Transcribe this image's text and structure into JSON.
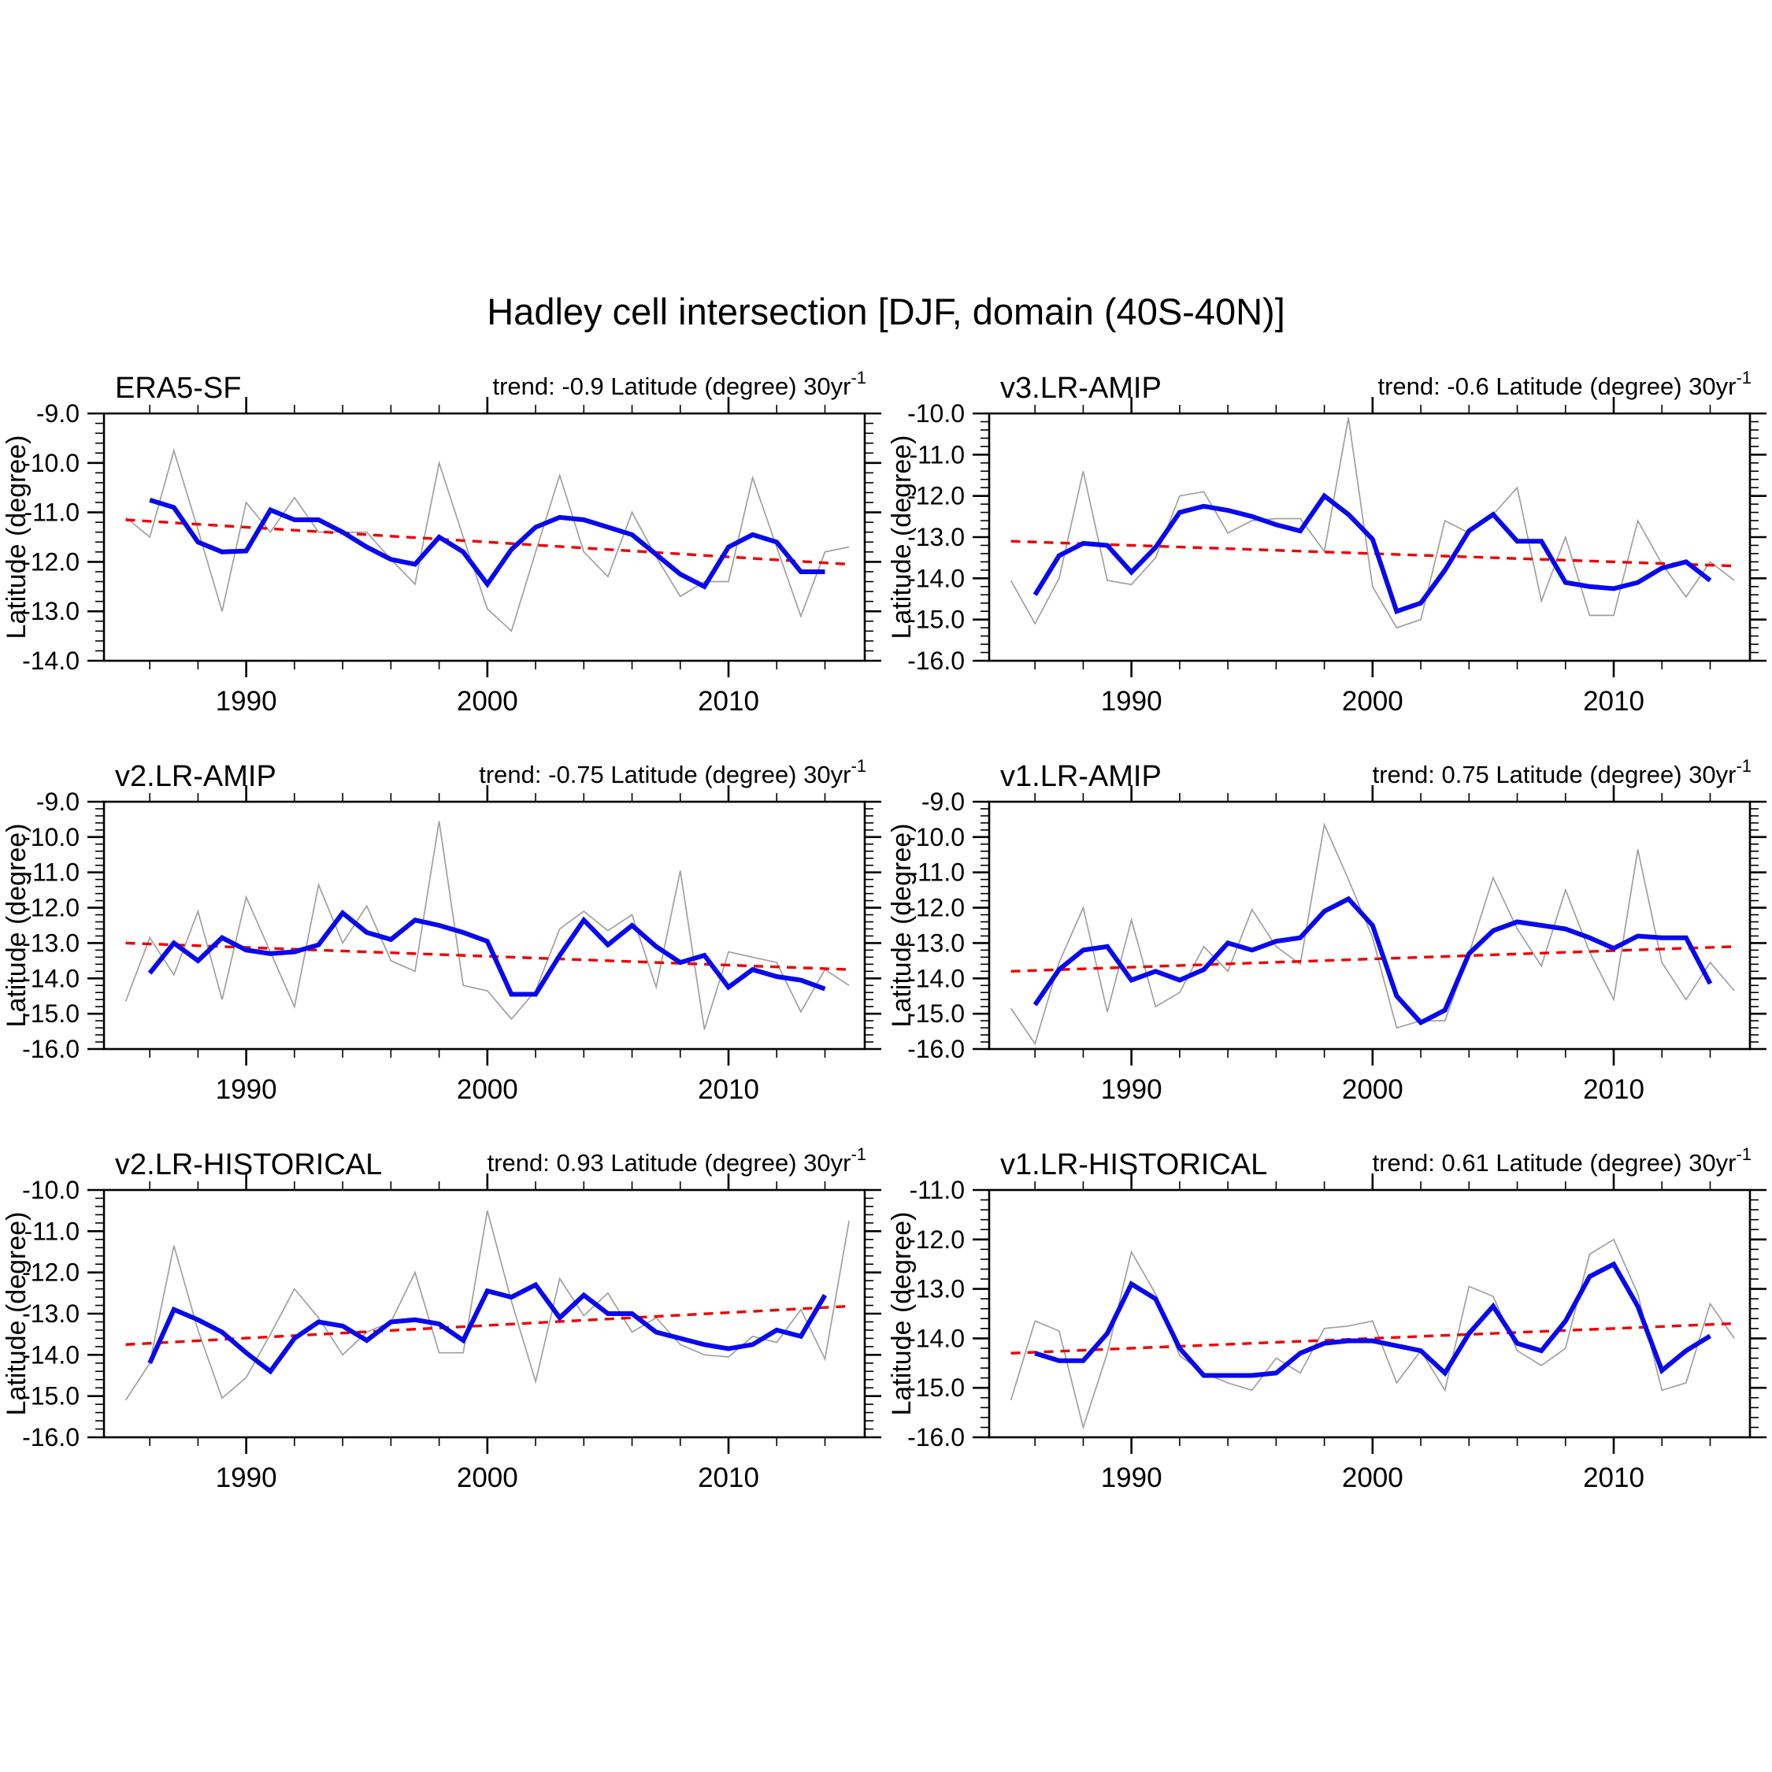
{
  "figure_title": "Hadley cell intersection [DJF, domain (40S-40N)]",
  "axes_text": {
    "y_axis_label": "Latitude (degree)",
    "x_major_ticks": [
      1990,
      2000,
      2010
    ],
    "x_minor_step_years": 2,
    "y_minor_step_degrees": 0.2,
    "x_range_years": [
      1985,
      2015
    ]
  },
  "years_raw": [
    1985,
    1986,
    1987,
    1988,
    1989,
    1990,
    1991,
    1992,
    1993,
    1994,
    1995,
    1996,
    1997,
    1998,
    1999,
    2000,
    2001,
    2002,
    2003,
    2004,
    2005,
    2006,
    2007,
    2008,
    2009,
    2010,
    2011,
    2012,
    2013,
    2014,
    2015
  ],
  "years_smooth": [
    1986,
    1987,
    1988,
    1989,
    1990,
    1991,
    1992,
    1993,
    1994,
    1995,
    1996,
    1997,
    1998,
    1999,
    2000,
    2001,
    2002,
    2003,
    2004,
    2005,
    2006,
    2007,
    2008,
    2009,
    2010,
    2011,
    2012,
    2013,
    2014
  ],
  "colors": {
    "annual": "#a0a0a0",
    "smoothed": "#0808f0",
    "trend": "#f00000",
    "axis": "#000000"
  },
  "chart_data": [
    {
      "type": "line",
      "id": "era5-sf",
      "title": "ERA5-SF",
      "trend_label": {
        "prefix": "trend: -0.9 Latitude (degree) 30yr",
        "superscript": "-1"
      },
      "trend_per_30yr": -0.9,
      "ylabel": "Latitude (degree)",
      "ylim": [
        -14.0,
        -9.0
      ],
      "ytick_step": 1.0,
      "grid": false,
      "series": [
        {
          "name": "annual",
          "x_start": 1985,
          "values": [
            -11.1,
            -11.5,
            -9.75,
            -11.35,
            -13.0,
            -10.8,
            -11.4,
            -10.7,
            -11.4,
            -11.4,
            -11.4,
            -11.95,
            -12.45,
            -10.0,
            -11.5,
            -12.95,
            -13.4,
            -11.8,
            -10.25,
            -11.8,
            -12.3,
            -11.0,
            -11.9,
            -12.7,
            -12.4,
            -12.4,
            -10.3,
            -11.7,
            -13.1,
            -11.8,
            -11.7
          ]
        },
        {
          "name": "smoothed",
          "x_start": 1986,
          "values": [
            -10.75,
            -10.9,
            -11.6,
            -11.8,
            -11.78,
            -10.95,
            -11.15,
            -11.15,
            -11.4,
            -11.7,
            -11.95,
            -12.05,
            -11.5,
            -11.8,
            -12.45,
            -11.75,
            -11.3,
            -11.1,
            -11.15,
            -11.3,
            -11.45,
            -11.85,
            -12.25,
            -12.5,
            -11.7,
            -11.45,
            -11.6,
            -12.2,
            -12.2
          ]
        },
        {
          "name": "trend",
          "x": [
            1985,
            2015
          ],
          "values": [
            -11.15,
            -12.05
          ]
        }
      ]
    },
    {
      "type": "line",
      "id": "v3-lr-amip",
      "title": "v3.LR-AMIP",
      "trend_label": {
        "prefix": "trend: -0.6 Latitude (degree) 30yr",
        "superscript": "-1"
      },
      "trend_per_30yr": -0.6,
      "ylabel": "Latitude (degree)",
      "ylim": [
        -16.0,
        -10.0
      ],
      "ytick_step": 1.0,
      "grid": false,
      "series": [
        {
          "name": "annual",
          "x_start": 1985,
          "values": [
            -14.05,
            -15.1,
            -14.0,
            -11.4,
            -14.05,
            -14.15,
            -13.5,
            -12.0,
            -11.9,
            -12.9,
            -12.6,
            -12.55,
            -12.55,
            -13.35,
            -10.1,
            -14.2,
            -15.2,
            -15.0,
            -12.6,
            -12.9,
            -12.45,
            -11.8,
            -14.55,
            -13.0,
            -14.9,
            -14.9,
            -12.6,
            -13.65,
            -14.45,
            -13.6,
            -14.05
          ]
        },
        {
          "name": "smoothed",
          "x_start": 1986,
          "values": [
            -14.4,
            -13.45,
            -13.15,
            -13.2,
            -13.85,
            -13.25,
            -12.4,
            -12.25,
            -12.35,
            -12.5,
            -12.7,
            -12.85,
            -12.0,
            -12.45,
            -13.05,
            -14.8,
            -14.6,
            -13.8,
            -12.85,
            -12.45,
            -13.1,
            -13.1,
            -14.1,
            -14.2,
            -14.25,
            -14.1,
            -13.75,
            -13.6,
            -14.05
          ]
        },
        {
          "name": "trend",
          "x": [
            1985,
            2015
          ],
          "values": [
            -13.1,
            -13.7
          ]
        }
      ]
    },
    {
      "type": "line",
      "id": "v2-lr-amip",
      "title": "v2.LR-AMIP",
      "trend_label": {
        "prefix": "trend: -0.75 Latitude (degree) 30yr",
        "superscript": "-1"
      },
      "trend_per_30yr": -0.75,
      "ylabel": "Latitude (degree)",
      "ylim": [
        -16.0,
        -9.0
      ],
      "ytick_step": 1.0,
      "grid": false,
      "series": [
        {
          "name": "annual",
          "x_start": 1985,
          "values": [
            -14.65,
            -12.85,
            -13.9,
            -12.1,
            -14.6,
            -11.7,
            -13.25,
            -14.8,
            -11.35,
            -13.0,
            -11.95,
            -13.5,
            -13.8,
            -9.55,
            -14.2,
            -14.35,
            -15.15,
            -14.35,
            -12.6,
            -12.1,
            -12.65,
            -12.2,
            -14.25,
            -10.95,
            -15.45,
            -13.25,
            -13.4,
            -13.55,
            -14.95,
            -13.75,
            -14.2
          ]
        },
        {
          "name": "smoothed",
          "x_start": 1986,
          "values": [
            -13.85,
            -13.0,
            -13.5,
            -12.85,
            -13.2,
            -13.3,
            -13.25,
            -13.05,
            -12.15,
            -12.7,
            -12.9,
            -12.35,
            -12.5,
            -12.7,
            -12.95,
            -14.45,
            -14.45,
            -13.35,
            -12.35,
            -13.05,
            -12.5,
            -13.1,
            -13.55,
            -13.35,
            -14.25,
            -13.75,
            -13.95,
            -14.05,
            -14.3
          ]
        },
        {
          "name": "trend",
          "x": [
            1985,
            2015
          ],
          "values": [
            -13.0,
            -13.75
          ]
        }
      ]
    },
    {
      "type": "line",
      "id": "v1-lr-amip",
      "title": "v1.LR-AMIP",
      "trend_label": {
        "prefix": "trend: 0.75 Latitude (degree) 30yr",
        "superscript": "-1"
      },
      "trend_per_30yr": 0.75,
      "ylabel": "Latitude (degree)",
      "ylim": [
        -16.0,
        -9.0
      ],
      "ytick_step": 1.0,
      "grid": false,
      "series": [
        {
          "name": "annual",
          "x_start": 1985,
          "values": [
            -14.85,
            -15.85,
            -13.55,
            -12.0,
            -14.95,
            -12.35,
            -14.8,
            -14.4,
            -13.1,
            -13.8,
            -12.05,
            -13.1,
            -13.6,
            -9.65,
            -11.2,
            -12.85,
            -15.4,
            -15.2,
            -15.2,
            -13.3,
            -11.15,
            -12.6,
            -13.65,
            -11.5,
            -13.25,
            -14.6,
            -10.35,
            -13.55,
            -14.6,
            -13.55,
            -14.35
          ]
        },
        {
          "name": "smoothed",
          "x_start": 1986,
          "values": [
            -14.75,
            -13.75,
            -13.2,
            -13.1,
            -14.05,
            -13.8,
            -14.05,
            -13.75,
            -13.0,
            -13.2,
            -12.95,
            -12.85,
            -12.1,
            -11.75,
            -12.5,
            -14.5,
            -15.25,
            -14.9,
            -13.3,
            -12.65,
            -12.4,
            -12.5,
            -12.6,
            -12.85,
            -13.15,
            -12.8,
            -12.85,
            -12.85,
            -14.15
          ]
        },
        {
          "name": "trend",
          "x": [
            1985,
            2015
          ],
          "values": [
            -13.8,
            -13.1
          ]
        }
      ]
    },
    {
      "type": "line",
      "id": "v2-lr-historical",
      "title": "v2.LR-HISTORICAL",
      "trend_label": {
        "prefix": "trend: 0.93 Latitude (degree) 30yr",
        "superscript": "-1"
      },
      "trend_per_30yr": 0.93,
      "ylabel": "Latitude (degree)",
      "ylim": [
        -16.0,
        -10.0
      ],
      "ytick_step": 1.0,
      "grid": false,
      "series": [
        {
          "name": "annual",
          "x_start": 1985,
          "values": [
            -15.1,
            -14.2,
            -11.35,
            -13.4,
            -15.05,
            -14.55,
            -13.5,
            -12.4,
            -13.1,
            -14.0,
            -13.45,
            -13.2,
            -12.0,
            -13.95,
            -13.95,
            -10.5,
            -12.7,
            -14.65,
            -12.15,
            -13.05,
            -12.5,
            -13.45,
            -13.1,
            -13.75,
            -14.0,
            -14.05,
            -13.55,
            -13.7,
            -12.9,
            -14.1,
            -10.75
          ]
        },
        {
          "name": "smoothed",
          "x_start": 1986,
          "values": [
            -14.2,
            -12.9,
            -13.15,
            -13.45,
            -13.95,
            -14.4,
            -13.6,
            -13.2,
            -13.3,
            -13.65,
            -13.2,
            -13.15,
            -13.25,
            -13.65,
            -12.45,
            -12.6,
            -12.3,
            -13.1,
            -12.55,
            -13.0,
            -13.0,
            -13.45,
            -13.6,
            -13.75,
            -13.85,
            -13.75,
            -13.4,
            -13.55,
            -12.55
          ]
        },
        {
          "name": "trend",
          "x": [
            1985,
            2015
          ],
          "values": [
            -13.75,
            -12.82
          ]
        }
      ]
    },
    {
      "type": "line",
      "id": "v1-lr-historical",
      "title": "v1.LR-HISTORICAL",
      "trend_label": {
        "prefix": "trend: 0.61 Latitude (degree) 30yr",
        "superscript": "-1"
      },
      "trend_per_30yr": 0.61,
      "ylabel": "Latitude (degree)",
      "ylim": [
        -16.0,
        -11.0
      ],
      "ytick_step": 1.0,
      "grid": false,
      "series": [
        {
          "name": "annual",
          "x_start": 1985,
          "values": [
            -15.25,
            -13.65,
            -13.85,
            -15.8,
            -14.3,
            -12.25,
            -13.1,
            -14.35,
            -14.7,
            -14.9,
            -15.05,
            -14.4,
            -14.7,
            -13.8,
            -13.75,
            -13.65,
            -14.9,
            -14.25,
            -15.05,
            -12.95,
            -13.15,
            -14.25,
            -14.55,
            -14.2,
            -12.3,
            -12.0,
            -13.1,
            -15.05,
            -14.9,
            -13.3,
            -14.0
          ]
        },
        {
          "name": "smoothed",
          "x_start": 1986,
          "values": [
            -14.3,
            -14.45,
            -14.45,
            -13.9,
            -12.9,
            -13.2,
            -14.2,
            -14.75,
            -14.75,
            -14.75,
            -14.7,
            -14.3,
            -14.1,
            -14.05,
            -14.05,
            -14.15,
            -14.25,
            -14.7,
            -13.9,
            -13.35,
            -14.1,
            -14.25,
            -13.65,
            -12.75,
            -12.5,
            -13.35,
            -14.65,
            -14.25,
            -13.95
          ]
        },
        {
          "name": "trend",
          "x": [
            1985,
            2015
          ],
          "values": [
            -14.3,
            -13.7
          ]
        }
      ]
    }
  ]
}
